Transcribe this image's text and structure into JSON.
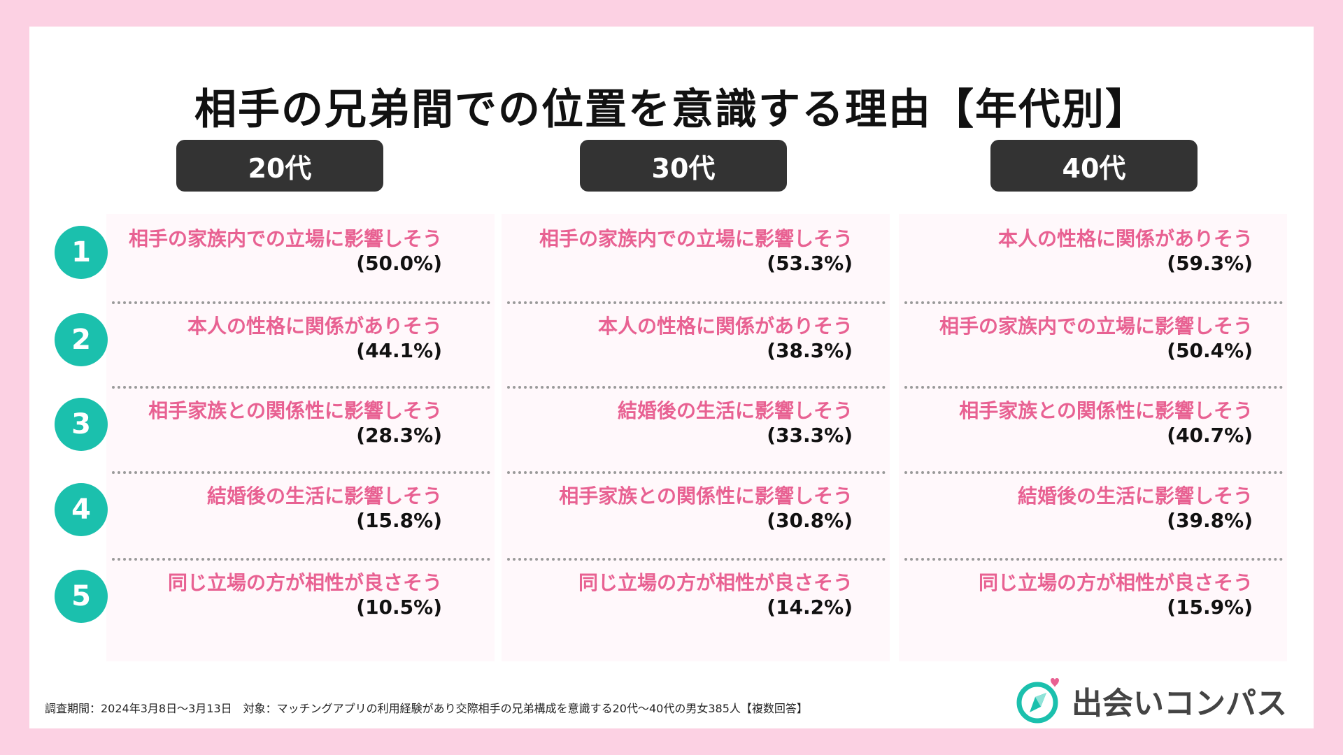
{
  "title": "相手の兄弟間での位置を意識する理由【年代別】",
  "chart_data": {
    "type": "table",
    "title": "相手の兄弟間での位置を意識する理由【年代別】",
    "ranks": [
      "1",
      "2",
      "3",
      "4",
      "5"
    ],
    "groups": [
      {
        "name": "20代",
        "items": [
          {
            "label": "相手の家族内での立場に影響しそう",
            "value": "(50.0%)"
          },
          {
            "label": "本人の性格に関係がありそう",
            "value": "(44.1%)"
          },
          {
            "label": "相手家族との関係性に影響しそう",
            "value": "(28.3%)"
          },
          {
            "label": "結婚後の生活に影響しそう",
            "value": "(15.8%)"
          },
          {
            "label": "同じ立場の方が相性が良さそう",
            "value": "(10.5%)"
          }
        ]
      },
      {
        "name": "30代",
        "items": [
          {
            "label": "相手の家族内での立場に影響しそう",
            "value": "(53.3%)"
          },
          {
            "label": "本人の性格に関係がありそう",
            "value": "(38.3%)"
          },
          {
            "label": "結婚後の生活に影響しそう",
            "value": "(33.3%)"
          },
          {
            "label": "相手家族との関係性に影響しそう",
            "value": "(30.8%)"
          },
          {
            "label": "同じ立場の方が相性が良さそう",
            "value": "(14.2%)"
          }
        ]
      },
      {
        "name": "40代",
        "items": [
          {
            "label": "本人の性格に関係がありそう",
            "value": "(59.3%)"
          },
          {
            "label": "相手の家族内での立場に影響しそう",
            "value": "(50.4%)"
          },
          {
            "label": "相手家族との関係性に影響しそう",
            "value": "(40.7%)"
          },
          {
            "label": "結婚後の生活に影響しそう",
            "value": "(39.8%)"
          },
          {
            "label": "同じ立場の方が相性が良さそう",
            "value": "(15.9%)"
          }
        ]
      }
    ]
  },
  "footnote": "調査期間：2024年3月8日〜3月13日　対象：マッチングアプリの利用経験があり交際相手の兄弟構成を意識する20代〜40代の男女385人【複数回答】",
  "brand": {
    "name": "出会いコンパス",
    "icon": "compass-heart-icon",
    "accent_color": "#1bc0ad",
    "heart_color": "#e86192"
  },
  "colors": {
    "background": "#fcd1e3",
    "label": "#e86192",
    "rank_circle": "#1bc0ad",
    "header": "#333333"
  }
}
